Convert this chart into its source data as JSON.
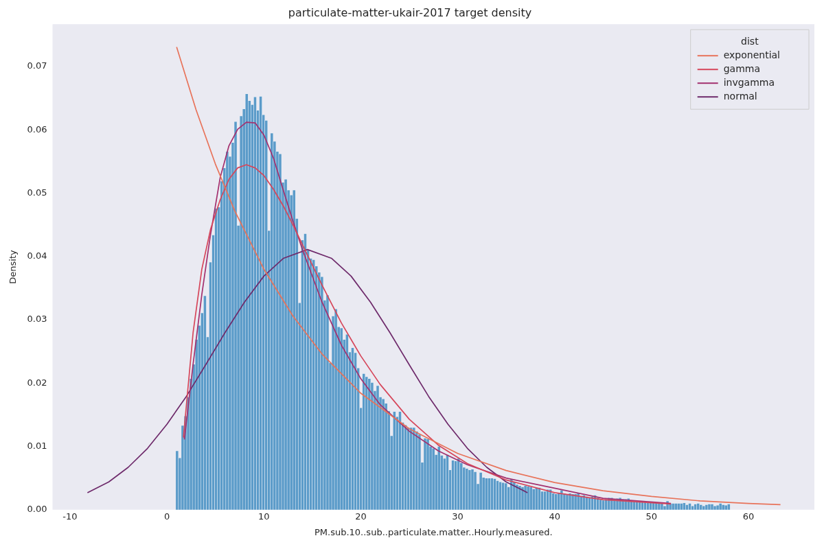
{
  "chart_data": {
    "type": "histogram",
    "title": "particulate-matter-ukair-2017 target density",
    "xlabel": "PM.sub.10..sub..particulate.matter..Hourly.measured.",
    "ylabel": "Density",
    "legend_title": "dist",
    "legend": "top right",
    "color": "#5b9bc9",
    "bins": [
      0.9,
      1.1875,
      1.475,
      1.7625,
      2.05,
      2.3375,
      2.625,
      2.9125,
      3.2,
      3.4875,
      3.775,
      4.0625,
      4.35,
      4.6375,
      4.925,
      5.2125,
      5.5,
      5.7875,
      6.075,
      6.3625,
      6.65,
      6.9375,
      7.225,
      7.5125,
      7.8,
      8.0875,
      8.375,
      8.6625,
      8.95,
      9.2375,
      9.525,
      9.8125,
      10.1,
      10.3875,
      10.675,
      10.9625,
      11.25,
      11.5375,
      11.825,
      12.1125,
      12.4,
      12.6875,
      12.975,
      13.2625,
      13.55,
      13.8375,
      14.125,
      14.4125,
      14.7,
      14.9875,
      15.275,
      15.5625,
      15.85,
      16.1375,
      16.425,
      16.7125,
      17,
      17.2875,
      17.575,
      17.8625,
      18.15,
      18.4375,
      18.725,
      19.0125,
      19.3,
      19.5875,
      19.875,
      20.1625,
      20.45,
      20.7375,
      21.025,
      21.3125,
      21.6,
      21.8875,
      22.175,
      22.4625,
      22.75,
      23.0375,
      23.325,
      23.6125,
      23.9,
      24.1875,
      24.475,
      24.7625,
      25.05,
      25.3375,
      25.625,
      25.9125,
      26.2,
      26.4875,
      26.775,
      27.0625,
      27.35,
      27.6375,
      27.925,
      28.2125,
      28.5,
      28.7875,
      29.075,
      29.3625,
      29.65,
      29.9375,
      30.225,
      30.5125,
      30.8,
      31.0875,
      31.375,
      31.6625,
      31.95,
      32.2375,
      32.525,
      32.8125,
      33.1,
      33.3875,
      33.675,
      33.9625,
      34.25,
      34.5375,
      34.825,
      35.1125,
      35.4,
      35.6875,
      35.975,
      36.2625,
      36.55,
      36.8375,
      37.125,
      37.4125,
      37.7,
      37.9875,
      38.275,
      38.5625,
      38.85,
      39.1375,
      39.425,
      39.7125,
      40,
      40.2875,
      40.575,
      40.8625,
      41.15,
      41.4375,
      41.725,
      42.0125,
      42.3,
      42.5875,
      42.875,
      43.1625,
      43.45,
      43.7375,
      44.025,
      44.3125,
      44.6,
      44.8875,
      45.175,
      45.4625,
      45.75,
      46.0375,
      46.325,
      46.6125,
      46.9,
      47.1875,
      47.475,
      47.7625,
      48.05,
      48.3375,
      48.625,
      48.9125,
      49.2,
      49.4875,
      49.775,
      50.0625,
      50.35,
      50.6375,
      50.925,
      51.2125,
      51.5,
      51.7875,
      52.075,
      52.3625,
      52.65,
      52.9375,
      53.225,
      53.5125,
      53.8,
      54.0875,
      54.375,
      54.6625,
      54.95,
      55.2375,
      55.525,
      55.8125,
      56.1,
      56.3875,
      56.675,
      56.9625,
      57.25,
      57.5375,
      57.825,
      58.1125
    ],
    "values": [
      0.0093,
      0.0082,
      0.0133,
      0.0148,
      0.0178,
      0.0207,
      0.023,
      0.0269,
      0.0291,
      0.0311,
      0.0338,
      0.0273,
      0.0391,
      0.0434,
      0.0476,
      0.0478,
      0.0519,
      0.054,
      0.0566,
      0.0558,
      0.058,
      0.0613,
      0.0449,
      0.0622,
      0.0633,
      0.0657,
      0.0646,
      0.064,
      0.0652,
      0.0631,
      0.0653,
      0.0624,
      0.0615,
      0.0441,
      0.0595,
      0.0582,
      0.0566,
      0.0562,
      0.0517,
      0.0522,
      0.0505,
      0.0497,
      0.0505,
      0.046,
      0.0327,
      0.0426,
      0.0436,
      0.041,
      0.0397,
      0.0395,
      0.0385,
      0.0375,
      0.0368,
      0.0331,
      0.0339,
      0.0232,
      0.0306,
      0.0317,
      0.0289,
      0.0287,
      0.0269,
      0.0277,
      0.0249,
      0.0256,
      0.0248,
      0.0224,
      0.0161,
      0.0215,
      0.021,
      0.0207,
      0.0201,
      0.0188,
      0.0196,
      0.0178,
      0.0175,
      0.0168,
      0.0156,
      0.0117,
      0.0155,
      0.0147,
      0.0155,
      0.0138,
      0.0134,
      0.013,
      0.013,
      0.013,
      0.0124,
      0.0119,
      0.0075,
      0.0113,
      0.0112,
      0.01,
      0.0097,
      0.0087,
      0.01,
      0.0086,
      0.0081,
      0.0087,
      0.0063,
      0.0078,
      0.0077,
      0.0081,
      0.0074,
      0.0067,
      0.0065,
      0.0063,
      0.0064,
      0.006,
      0.0041,
      0.0059,
      0.0051,
      0.005,
      0.005,
      0.005,
      0.0049,
      0.0046,
      0.0044,
      0.0043,
      0.0042,
      0.0036,
      0.0048,
      0.0044,
      0.004,
      0.0038,
      0.0036,
      0.0038,
      0.0037,
      0.0036,
      0.0033,
      0.0035,
      0.0035,
      0.0029,
      0.0029,
      0.0032,
      0.0032,
      0.0026,
      0.0025,
      0.0027,
      0.0031,
      0.0026,
      0.0024,
      0.0026,
      0.0025,
      0.0025,
      0.0027,
      0.0022,
      0.0023,
      0.0021,
      0.0019,
      0.0021,
      0.0023,
      0.0019,
      0.0016,
      0.0015,
      0.0017,
      0.0019,
      0.0019,
      0.0017,
      0.0018,
      0.0019,
      0.0017,
      0.0017,
      0.0018,
      0.0013,
      0.0014,
      0.0014,
      0.0012,
      0.0014,
      0.0014,
      0.0012,
      0.0012,
      0.0012,
      0.0012,
      0.0012,
      0.0011,
      0.0006,
      0.0014,
      0.001,
      0.001,
      0.001,
      0.001,
      0.001,
      0.0011,
      0.0008,
      0.001,
      0.0006,
      0.0009,
      0.001,
      0.0008,
      0.0006,
      0.0008,
      0.0009,
      0.0009,
      0.0006,
      0.0007,
      0.001,
      0.0008,
      0.0007,
      0.0009
    ],
    "series": [
      {
        "name": "exponential",
        "type": "line",
        "color": "#e8735a",
        "x": [
          1,
          3,
          5,
          7,
          10,
          13,
          16,
          20,
          25,
          30,
          35,
          40,
          45,
          50,
          55,
          60,
          63.3
        ],
        "values": [
          0.0731,
          0.0632,
          0.0546,
          0.0472,
          0.038,
          0.0306,
          0.0246,
          0.0184,
          0.0128,
          0.0089,
          0.0062,
          0.0043,
          0.003,
          0.0021,
          0.0014,
          0.001,
          0.0008
        ]
      },
      {
        "name": "gamma",
        "type": "line",
        "color": "#d6465a",
        "x": [
          1.7,
          2.7,
          3.6,
          4.5,
          5.5,
          6.4,
          7.3,
          8.2,
          9.1,
          10,
          11,
          12,
          13,
          14,
          16,
          18,
          20,
          22,
          25,
          28,
          31,
          35,
          40,
          45,
          52
        ],
        "values": [
          0.0114,
          0.028,
          0.038,
          0.0443,
          0.049,
          0.0522,
          0.054,
          0.0545,
          0.054,
          0.0528,
          0.0506,
          0.048,
          0.045,
          0.0418,
          0.0355,
          0.0295,
          0.0243,
          0.0198,
          0.0143,
          0.0102,
          0.0073,
          0.0047,
          0.0027,
          0.0016,
          0.0009
        ]
      },
      {
        "name": "invgamma",
        "type": "line",
        "color": "#a3306e",
        "x": [
          1.8,
          2.7,
          3.6,
          4.5,
          5.5,
          6.4,
          7.3,
          8.2,
          9.1,
          10,
          11,
          12,
          13,
          14,
          16,
          18,
          20,
          22,
          25,
          28,
          31,
          35,
          40,
          45,
          52
        ],
        "values": [
          0.0111,
          0.023,
          0.034,
          0.0435,
          0.0525,
          0.0575,
          0.0601,
          0.0612,
          0.0611,
          0.0592,
          0.0555,
          0.0505,
          0.0456,
          0.041,
          0.0328,
          0.026,
          0.0207,
          0.0166,
          0.0124,
          0.0093,
          0.0071,
          0.005,
          0.0034,
          0.0018,
          0.001
        ]
      },
      {
        "name": "normal",
        "type": "line",
        "color": "#6e2a6b",
        "x": [
          -8.2,
          -6,
          -4,
          -2,
          0,
          2,
          4,
          6,
          8,
          10,
          12,
          14.5,
          17,
          19,
          21,
          23,
          25,
          27,
          29,
          31,
          33,
          35,
          37.2
        ],
        "values": [
          0.0027,
          0.0044,
          0.0067,
          0.0097,
          0.0135,
          0.0179,
          0.0229,
          0.028,
          0.0328,
          0.0369,
          0.0397,
          0.0411,
          0.0397,
          0.0369,
          0.0328,
          0.028,
          0.0229,
          0.0179,
          0.0135,
          0.0097,
          0.0067,
          0.0044,
          0.0027
        ]
      }
    ],
    "xlim": [
      -11.8,
      66.8
    ],
    "xticks": [
      -10,
      0,
      10,
      20,
      30,
      40,
      50,
      60
    ],
    "ylim": [
      0,
      0.0767
    ],
    "yticks": [
      {
        "value": 0,
        "label": "0.00"
      },
      0.01,
      0.02,
      0.03,
      0.04,
      0.05,
      0.06,
      0.07
    ],
    "marker": "none"
  }
}
